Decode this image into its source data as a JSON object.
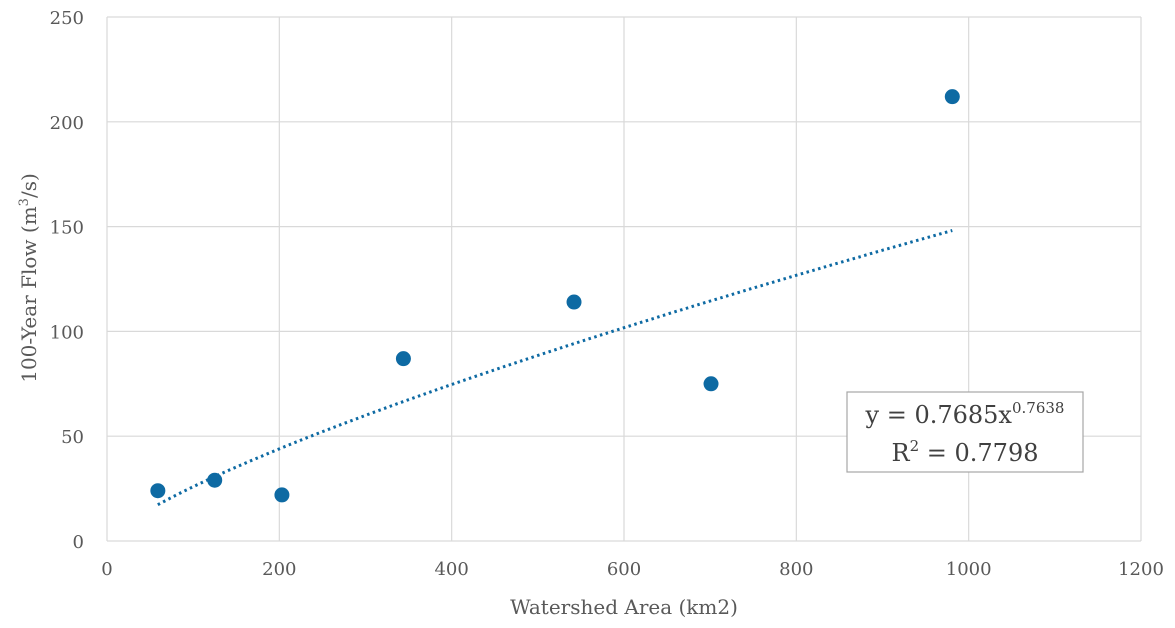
{
  "chart_data": {
    "type": "scatter",
    "title": "",
    "xlabel": "Watershed Area (km2)",
    "ylabel_main": "100-Year Flow (m",
    "ylabel_sup": "3",
    "ylabel_end": "/s)",
    "xlim": [
      0,
      1200
    ],
    "ylim": [
      0,
      250
    ],
    "x_ticks": [
      0,
      200,
      400,
      600,
      800,
      1000,
      1200
    ],
    "y_ticks": [
      0,
      50,
      100,
      150,
      200,
      250
    ],
    "x_tick_labels": [
      "0",
      "200",
      "400",
      "600",
      "800",
      "1000",
      "1200"
    ],
    "y_tick_labels": [
      "0",
      "50",
      "100",
      "150",
      "200",
      "250"
    ],
    "grid": true,
    "series": [
      {
        "points": [
          {
            "x": 59,
            "y": 24
          },
          {
            "x": 125,
            "y": 29
          },
          {
            "x": 203,
            "y": 22
          },
          {
            "x": 344,
            "y": 87
          },
          {
            "x": 542,
            "y": 114
          },
          {
            "x": 701,
            "y": 75
          },
          {
            "x": 981,
            "y": 212
          }
        ],
        "color": "#0e6aa3"
      }
    ],
    "trendline": {
      "type": "power",
      "coefficient": 0.7685,
      "exponent": 0.7638,
      "x_range": [
        59,
        981
      ],
      "color": "#0e6aa3",
      "style": "dotted"
    },
    "annotation": {
      "equation_prefix": "y = 0.7685x",
      "equation_exponent": "0.7638",
      "r2_prefix": "R",
      "r2_sup": "2",
      "r2_suffix": " = 0.7798"
    }
  }
}
